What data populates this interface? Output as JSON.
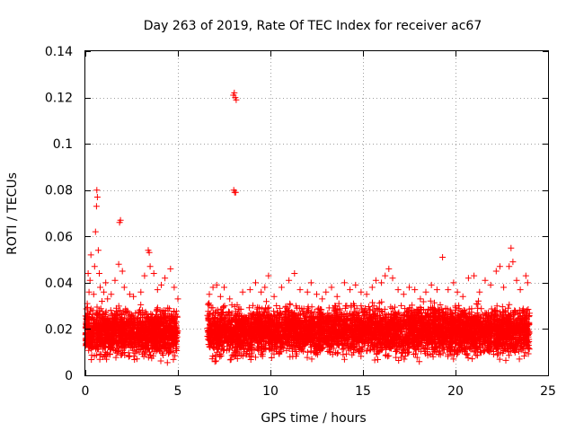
{
  "chart_data": {
    "type": "scatter",
    "title": "Day 263 of 2019, Rate Of TEC Index for receiver ac67",
    "xlabel": "GPS time / hours",
    "ylabel": "ROTI / TECUs",
    "xlim": [
      0,
      25
    ],
    "ylim": [
      0,
      0.14
    ],
    "xticks": [
      0,
      5,
      10,
      15,
      20,
      25
    ],
    "xtick_labels": [
      "0",
      "5",
      "10",
      "15",
      "20",
      "25"
    ],
    "yticks": [
      0,
      0.02,
      0.04,
      0.06,
      0.08,
      0.1,
      0.12,
      0.14
    ],
    "ytick_labels": [
      "0",
      "0.02",
      "0.04",
      "0.06",
      "0.08",
      "0.1",
      "0.12",
      "0.14"
    ],
    "grid": true,
    "marker": "plus",
    "color": "#ff0000",
    "series": [
      {
        "name": "ROTI",
        "points": [
          [
            0.05,
            0.023
          ],
          [
            0.1,
            0.031
          ],
          [
            0.15,
            0.044
          ],
          [
            0.2,
            0.036
          ],
          [
            0.25,
            0.041
          ],
          [
            0.3,
            0.052
          ],
          [
            0.4,
            0.028
          ],
          [
            0.45,
            0.035
          ],
          [
            0.5,
            0.047
          ],
          [
            0.55,
            0.062
          ],
          [
            0.6,
            0.073
          ],
          [
            0.62,
            0.08
          ],
          [
            0.65,
            0.077
          ],
          [
            0.7,
            0.054
          ],
          [
            0.75,
            0.044
          ],
          [
            0.8,
            0.038
          ],
          [
            0.9,
            0.032
          ],
          [
            1.0,
            0.036
          ],
          [
            1.1,
            0.04
          ],
          [
            1.2,
            0.033
          ],
          [
            1.4,
            0.035
          ],
          [
            1.6,
            0.041
          ],
          [
            1.8,
            0.048
          ],
          [
            1.85,
            0.066
          ],
          [
            1.9,
            0.067
          ],
          [
            2.0,
            0.045
          ],
          [
            2.1,
            0.038
          ],
          [
            2.4,
            0.035
          ],
          [
            2.6,
            0.034
          ],
          [
            3.0,
            0.036
          ],
          [
            3.2,
            0.043
          ],
          [
            3.4,
            0.054
          ],
          [
            3.45,
            0.053
          ],
          [
            3.5,
            0.047
          ],
          [
            3.7,
            0.044
          ],
          [
            3.9,
            0.037
          ],
          [
            4.1,
            0.039
          ],
          [
            4.3,
            0.042
          ],
          [
            4.6,
            0.046
          ],
          [
            4.8,
            0.038
          ],
          [
            5.0,
            0.033
          ],
          [
            6.7,
            0.035
          ],
          [
            6.9,
            0.038
          ],
          [
            7.1,
            0.039
          ],
          [
            7.3,
            0.034
          ],
          [
            7.5,
            0.038
          ],
          [
            7.8,
            0.033
          ],
          [
            8.0,
            0.121
          ],
          [
            8.05,
            0.122
          ],
          [
            8.1,
            0.12
          ],
          [
            8.15,
            0.119
          ],
          [
            8.02,
            0.08
          ],
          [
            8.07,
            0.079
          ],
          [
            8.12,
            0.079
          ],
          [
            8.5,
            0.036
          ],
          [
            8.9,
            0.037
          ],
          [
            9.2,
            0.04
          ],
          [
            9.5,
            0.036
          ],
          [
            9.7,
            0.038
          ],
          [
            9.9,
            0.043
          ],
          [
            10.2,
            0.034
          ],
          [
            10.6,
            0.038
          ],
          [
            11.0,
            0.041
          ],
          [
            11.3,
            0.044
          ],
          [
            11.6,
            0.037
          ],
          [
            12.0,
            0.036
          ],
          [
            12.2,
            0.04
          ],
          [
            12.5,
            0.035
          ],
          [
            12.8,
            0.033
          ],
          [
            13.0,
            0.036
          ],
          [
            13.3,
            0.038
          ],
          [
            13.6,
            0.034
          ],
          [
            14.0,
            0.04
          ],
          [
            14.3,
            0.037
          ],
          [
            14.6,
            0.039
          ],
          [
            14.9,
            0.036
          ],
          [
            15.2,
            0.035
          ],
          [
            15.5,
            0.038
          ],
          [
            15.7,
            0.041
          ],
          [
            16.0,
            0.04
          ],
          [
            16.2,
            0.043
          ],
          [
            16.4,
            0.046
          ],
          [
            16.6,
            0.042
          ],
          [
            16.9,
            0.037
          ],
          [
            17.2,
            0.035
          ],
          [
            17.5,
            0.038
          ],
          [
            17.8,
            0.037
          ],
          [
            18.1,
            0.033
          ],
          [
            18.4,
            0.036
          ],
          [
            18.7,
            0.039
          ],
          [
            19.0,
            0.037
          ],
          [
            19.3,
            0.051
          ],
          [
            19.6,
            0.037
          ],
          [
            19.9,
            0.04
          ],
          [
            20.1,
            0.036
          ],
          [
            20.4,
            0.034
          ],
          [
            20.7,
            0.042
          ],
          [
            21.0,
            0.043
          ],
          [
            21.3,
            0.036
          ],
          [
            21.6,
            0.041
          ],
          [
            21.9,
            0.039
          ],
          [
            22.2,
            0.045
          ],
          [
            22.4,
            0.047
          ],
          [
            22.6,
            0.038
          ],
          [
            22.9,
            0.047
          ],
          [
            23.0,
            0.055
          ],
          [
            23.1,
            0.049
          ],
          [
            23.3,
            0.041
          ],
          [
            23.5,
            0.037
          ],
          [
            23.8,
            0.043
          ],
          [
            23.9,
            0.04
          ]
        ],
        "dense_band": {
          "description": "dense cloud of points",
          "segments": [
            {
              "x": [
                0,
                5.0
              ],
              "y": [
                0.005,
                0.032
              ]
            },
            {
              "x": [
                6.6,
                24.0
              ],
              "y": [
                0.005,
                0.033
              ]
            }
          ]
        }
      }
    ]
  }
}
